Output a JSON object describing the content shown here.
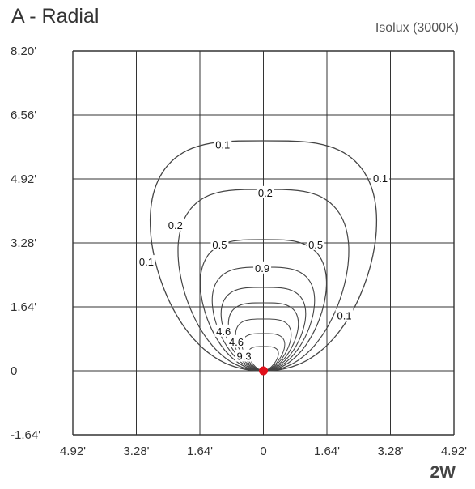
{
  "header": {
    "title": "A - Radial",
    "subtitle": "Isolux (3000K)",
    "power": "2W"
  },
  "chart_data": {
    "type": "isolux-contour",
    "x_ticks": [
      "4.92'",
      "3.28'",
      "1.64'",
      "0",
      "1.64'",
      "3.28'",
      "4.92'"
    ],
    "y_ticks": [
      "8.20'",
      "6.56'",
      "4.92'",
      "3.28'",
      "1.64'",
      "0",
      "-1.64'"
    ],
    "x_range": [
      -4.92,
      4.92
    ],
    "y_range": [
      -1.64,
      8.2
    ],
    "grid": true,
    "source_point": {
      "x": 0,
      "y": 0
    },
    "contour_labels": [
      {
        "text": "0.1",
        "x": -1.05,
        "y": 5.78
      },
      {
        "text": "0.1",
        "x": 3.02,
        "y": 4.92
      },
      {
        "text": "0.1",
        "x": -3.02,
        "y": 2.78
      },
      {
        "text": "0.1",
        "x": 2.09,
        "y": 1.4
      },
      {
        "text": "0.2",
        "x": 0.05,
        "y": 4.55
      },
      {
        "text": "0.2",
        "x": -2.27,
        "y": 3.72
      },
      {
        "text": "0.5",
        "x": -1.13,
        "y": 3.22
      },
      {
        "text": "0.5",
        "x": 1.35,
        "y": 3.22
      },
      {
        "text": "0.9",
        "x": -0.03,
        "y": 2.62
      },
      {
        "text": "4.6",
        "x": -1.03,
        "y": 1.0
      },
      {
        "text": "4.6",
        "x": -0.7,
        "y": 0.73
      },
      {
        "text": "9.3",
        "x": -0.5,
        "y": 0.36
      }
    ]
  }
}
